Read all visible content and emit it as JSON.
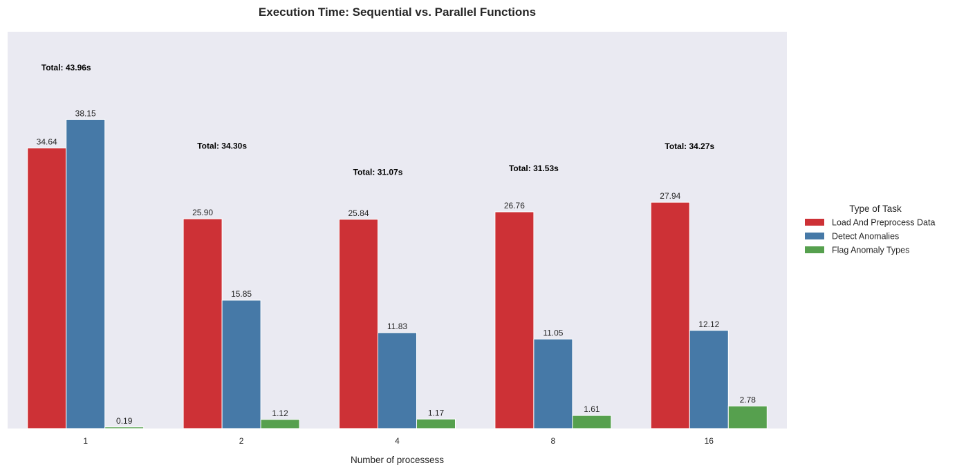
{
  "chart_data": {
    "type": "bar",
    "title": "Execution Time: Sequential vs. Parallel Functions",
    "xlabel": "Number of processess",
    "ylabel": "",
    "categories": [
      "1",
      "2",
      "4",
      "8",
      "16"
    ],
    "ylim": [
      0,
      49
    ],
    "grid": false,
    "legend_position": "right",
    "legend_title": "Type of Task",
    "series": [
      {
        "name": "Load And Preprocess Data",
        "color": "#cd3136",
        "values": [
          34.64,
          25.9,
          25.84,
          26.76,
          27.94
        ]
      },
      {
        "name": "Detect Anomalies",
        "color": "#4679a7",
        "values": [
          38.15,
          15.85,
          11.83,
          11.05,
          12.12
        ]
      },
      {
        "name": "Flag Anomaly Types",
        "color": "#56a04e",
        "values": [
          0.19,
          1.12,
          1.17,
          1.61,
          2.78
        ]
      }
    ],
    "totals": [
      "Total: 43.96s",
      "Total: 34.30s",
      "Total: 31.07s",
      "Total: 31.53s",
      "Total: 34.27s"
    ],
    "totals_values": [
      43.96,
      34.3,
      31.07,
      31.53,
      34.27
    ],
    "plot_background": "#eaeaf2"
  }
}
